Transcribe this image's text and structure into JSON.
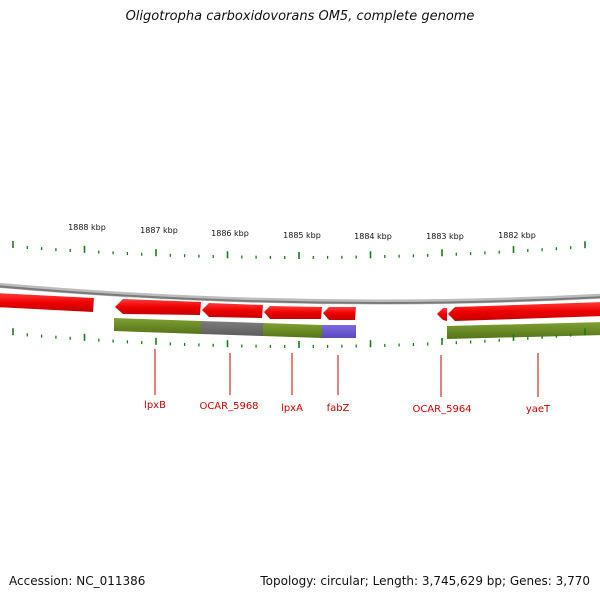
{
  "title": "Oligotropha carboxidovorans OM5, complete genome",
  "footer": {
    "accession": "Accession: NC_011386",
    "summary": "Topology: circular; Length: 3,745,629 bp; Genes: 3,770"
  },
  "ruler": {
    "labels": [
      "1888 kbp",
      "1887 kbp",
      "1886 kbp",
      "1885 kbp",
      "1884 kbp",
      "1883 kbp",
      "1882 kbp"
    ]
  },
  "genes": [
    {
      "label": "lpxB",
      "color": "#cc0000"
    },
    {
      "label": "OCAR_5968",
      "color": "#cc0000"
    },
    {
      "label": "lpxA",
      "color": "#cc0000"
    },
    {
      "label": "fabZ",
      "color": "#cc0000"
    },
    {
      "label": "OCAR_5964",
      "color": "#cc0000"
    },
    {
      "label": "yaeT",
      "color": "#cc0000"
    }
  ],
  "colors": {
    "gene_arrow": "#ff0000",
    "cds_green": "#6b8e23",
    "cds_gray": "#6e6e6e",
    "cds_purple": "#6a5acd",
    "tick": "#1a7a1a",
    "backbone": "#8c8c8c"
  }
}
